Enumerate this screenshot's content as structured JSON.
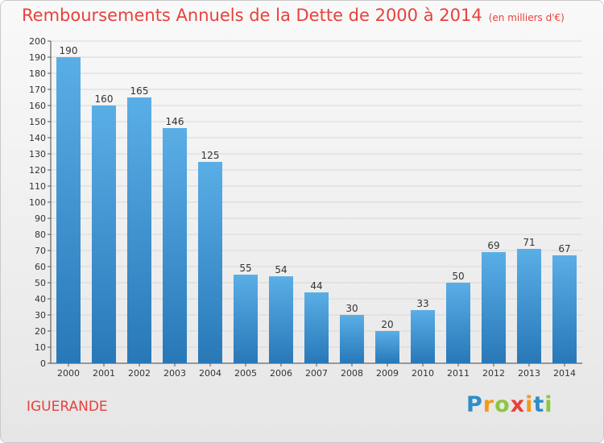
{
  "chart_data": {
    "type": "bar",
    "title": "Remboursements Annuels de la Dette de 2000 à 2014",
    "unit_label": "(en milliers d'€)",
    "categories": [
      "2000",
      "2001",
      "2002",
      "2003",
      "2004",
      "2005",
      "2006",
      "2007",
      "2008",
      "2009",
      "2010",
      "2011",
      "2012",
      "2013",
      "2014"
    ],
    "values": [
      190,
      160,
      165,
      146,
      125,
      55,
      54,
      44,
      30,
      20,
      33,
      50,
      69,
      71,
      67
    ],
    "xlabel": "",
    "ylabel": "",
    "ylim": [
      0,
      200
    ],
    "ytick_step": 10,
    "grid": true,
    "legend": "none"
  },
  "commune": "IGUERANDE",
  "logo": {
    "letters": [
      "P",
      "r",
      "o",
      "x",
      "i",
      "t",
      "i"
    ],
    "colors": [
      "#2f8dc7",
      "#f29a1a",
      "#8cc63e",
      "#e8413c",
      "#f29a1a",
      "#2f8dc7",
      "#8cc63e"
    ]
  },
  "colors": {
    "accent": "#e8413c",
    "bar_top": "#5aaee6",
    "bar_bottom": "#2878b8",
    "grid": "#d8d8d8"
  }
}
